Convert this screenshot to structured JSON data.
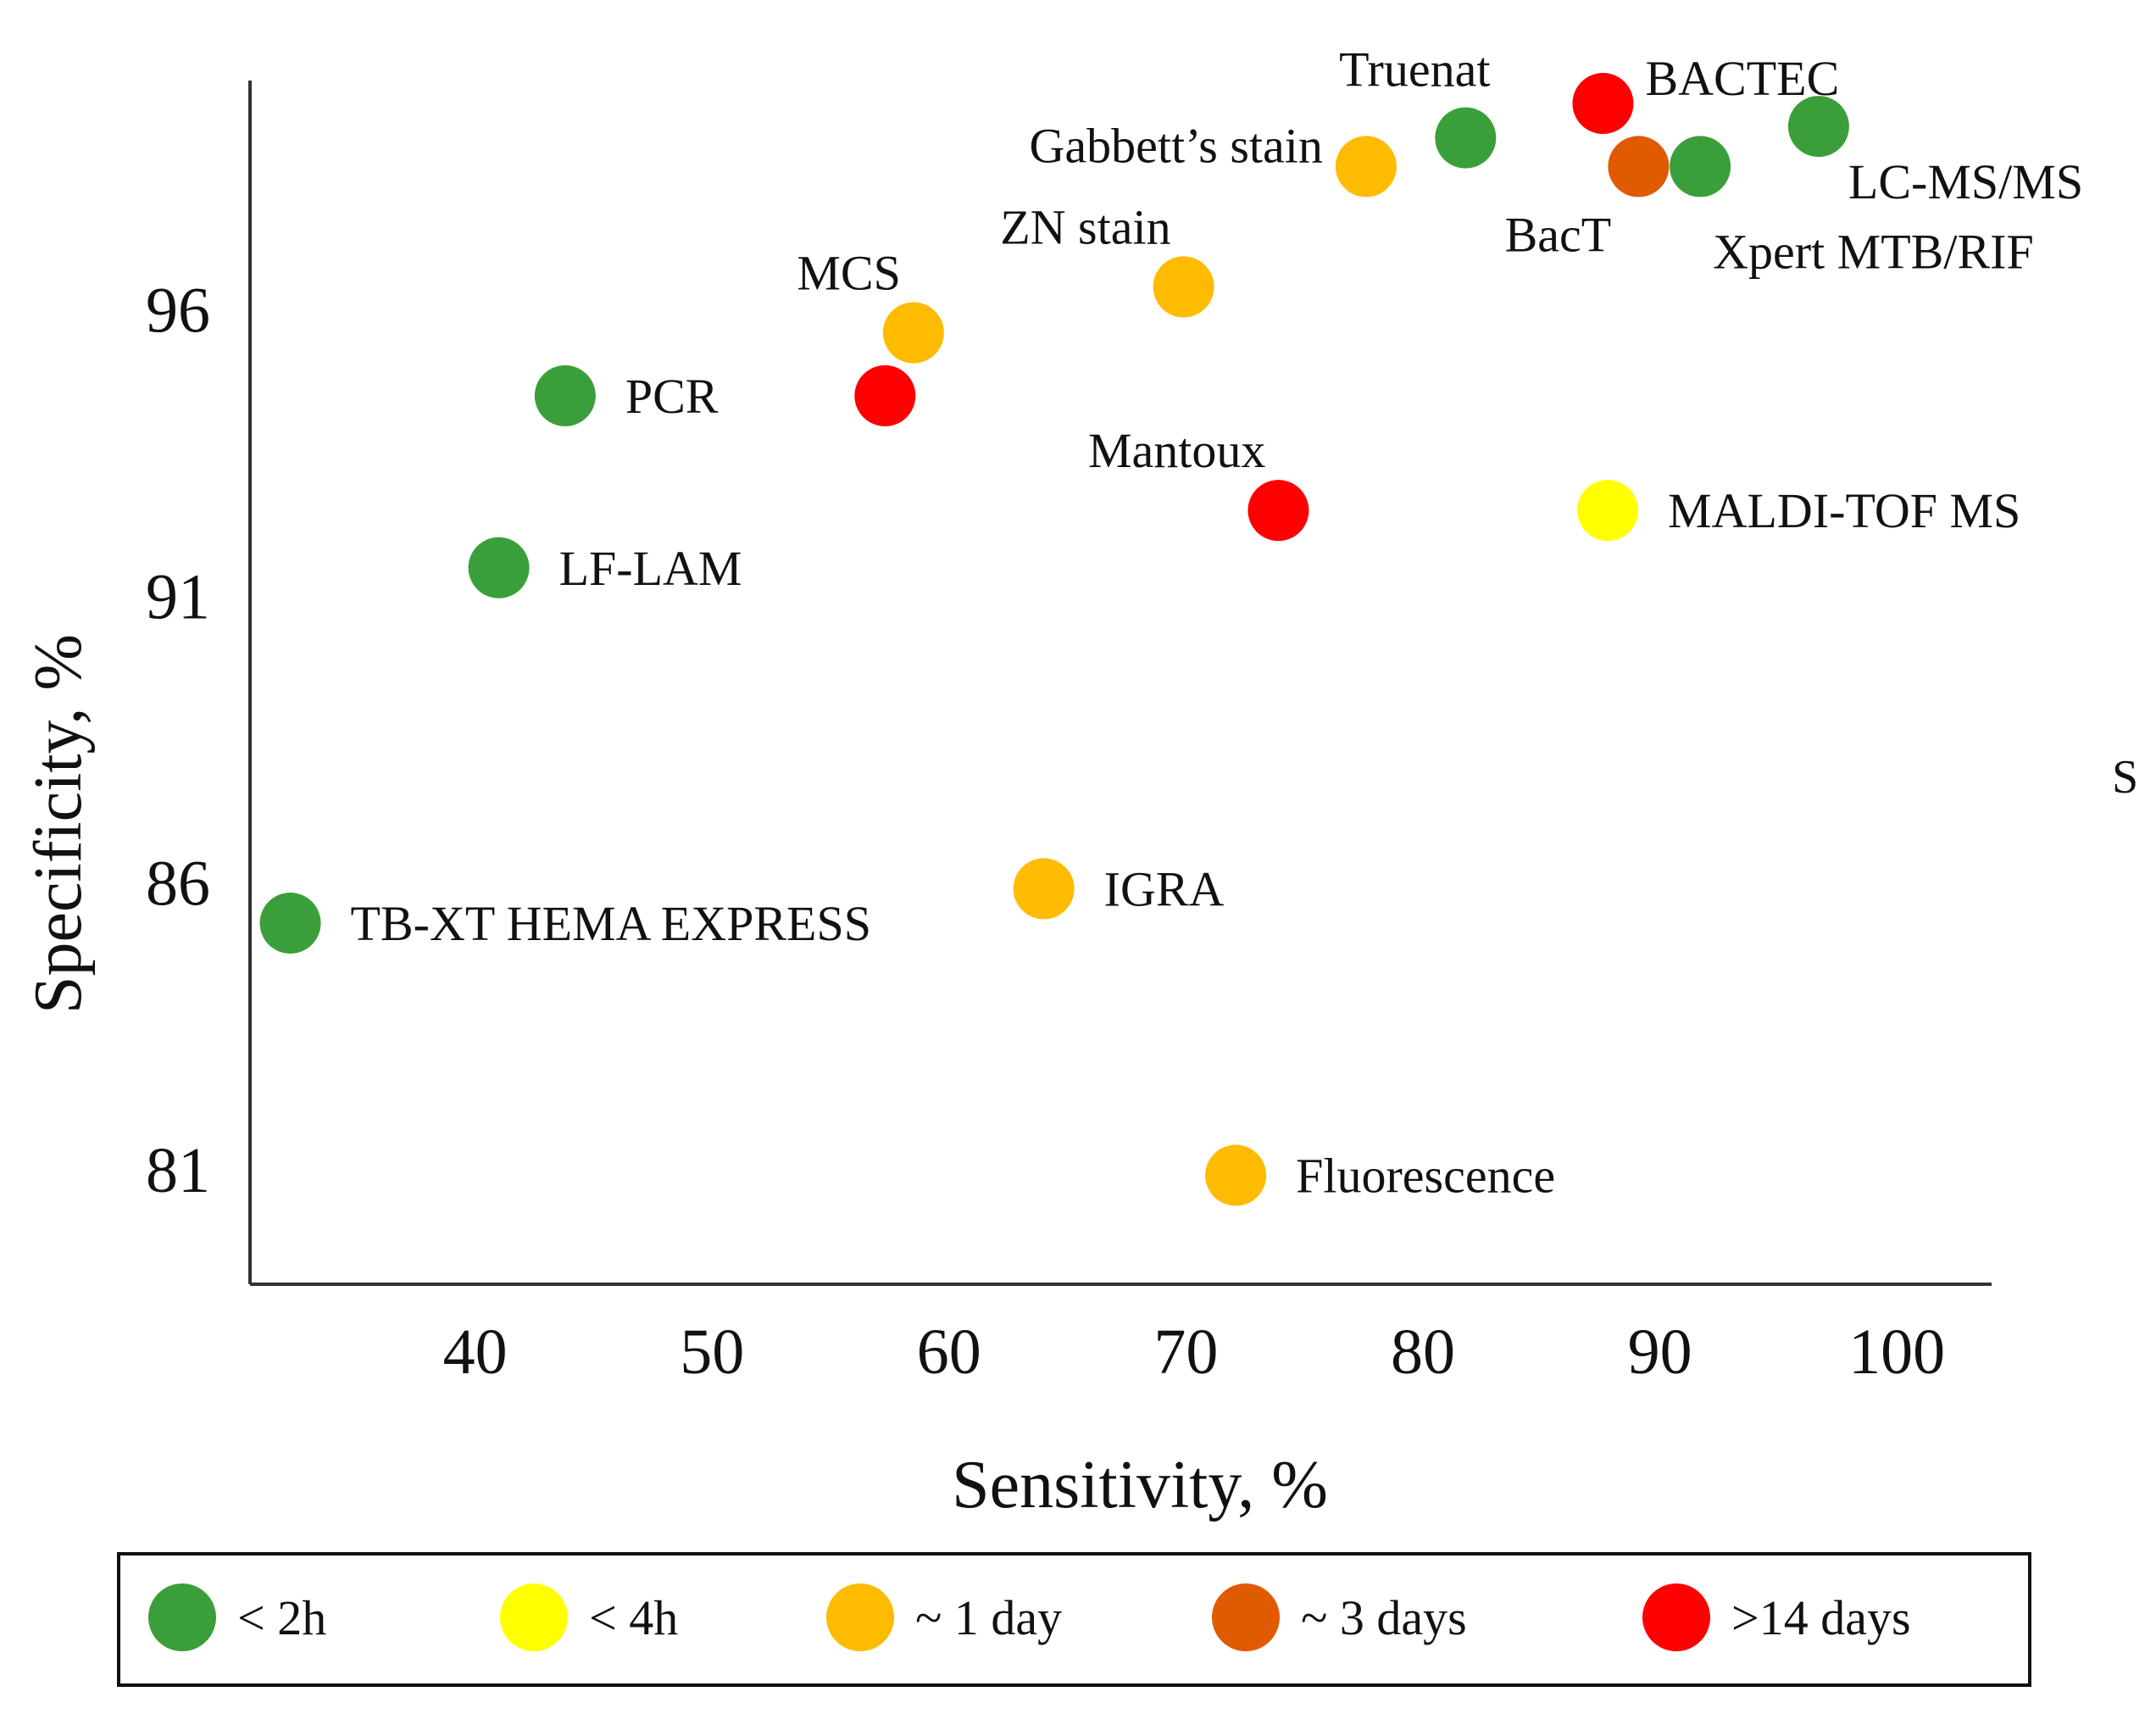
{
  "chart_data": {
    "type": "scatter",
    "xlabel": "Sensitivity, %",
    "ylabel": "Specificity, %",
    "xlim": [
      30.5,
      104
    ],
    "ylim": [
      79,
      100
    ],
    "x_ticks": [
      40,
      50,
      60,
      70,
      80,
      90,
      100
    ],
    "y_ticks": [
      81,
      86,
      91,
      96
    ],
    "categories": [
      {
        "id": "lt2h",
        "label": "< 2h",
        "color": "#3a9f3a"
      },
      {
        "id": "lt4h",
        "label": "< 4h",
        "color": "#ffff00"
      },
      {
        "id": "1day",
        "label": "~ 1 day",
        "color": "#ffbb00"
      },
      {
        "id": "3days",
        "label": "~ 3 days",
        "color": "#e05a00"
      },
      {
        "id": "14days",
        "label": ">14 days",
        "color": "#ff0000"
      }
    ],
    "points": [
      {
        "label": "Truenat",
        "x": 81.8,
        "y": 99.0,
        "category": "lt2h",
        "label_pos": "above"
      },
      {
        "label": "BACTEC",
        "x": 87.6,
        "y": 99.6,
        "category": "14days",
        "label_pos": "right-above"
      },
      {
        "label": "LC-MS/MS",
        "x": 96.7,
        "y": 99.2,
        "category": "lt2h",
        "label_pos": "right-below"
      },
      {
        "label": "Gabbett’s stain",
        "x": 77.6,
        "y": 98.5,
        "category": "1day",
        "label_pos": "left"
      },
      {
        "label": "BacT",
        "x": 89.1,
        "y": 98.5,
        "category": "3days",
        "label_pos": "below-left"
      },
      {
        "label": "Xpert MTB/RIF",
        "x": 91.7,
        "y": 98.5,
        "category": "lt2h",
        "label_pos": "below-right"
      },
      {
        "label": "ZN stain",
        "x": 69.9,
        "y": 96.4,
        "category": "1day",
        "label_pos": "above-left"
      },
      {
        "label": "MCS",
        "x": 58.5,
        "y": 95.6,
        "category": "1day",
        "label_pos": "above-left"
      },
      {
        "label": "PCR",
        "x": 43.8,
        "y": 94.5,
        "category": "lt2h",
        "label_pos": "right"
      },
      {
        "label": "",
        "x": 57.3,
        "y": 94.5,
        "category": "14days",
        "label_pos": "none"
      },
      {
        "label": "Mantoux",
        "x": 73.9,
        "y": 92.5,
        "category": "14days",
        "label_pos": "above-left"
      },
      {
        "label": "MALDI-TOF MS",
        "x": 87.8,
        "y": 92.5,
        "category": "lt4h",
        "label_pos": "right"
      },
      {
        "label": "LF-LAM",
        "x": 41.0,
        "y": 91.5,
        "category": "lt2h",
        "label_pos": "right"
      },
      {
        "label": "IGRA",
        "x": 64.0,
        "y": 85.9,
        "category": "1day",
        "label_pos": "right"
      },
      {
        "label": "TB-XT HEMA EXPRESS",
        "x": 32.2,
        "y": 85.3,
        "category": "lt2h",
        "label_pos": "right"
      },
      {
        "label": "Fluorescence",
        "x": 72.1,
        "y": 80.9,
        "category": "1day",
        "label_pos": "right"
      }
    ],
    "legend": {
      "placement": "bottom",
      "boxed": true
    },
    "grid": false,
    "stray_text": "S"
  }
}
